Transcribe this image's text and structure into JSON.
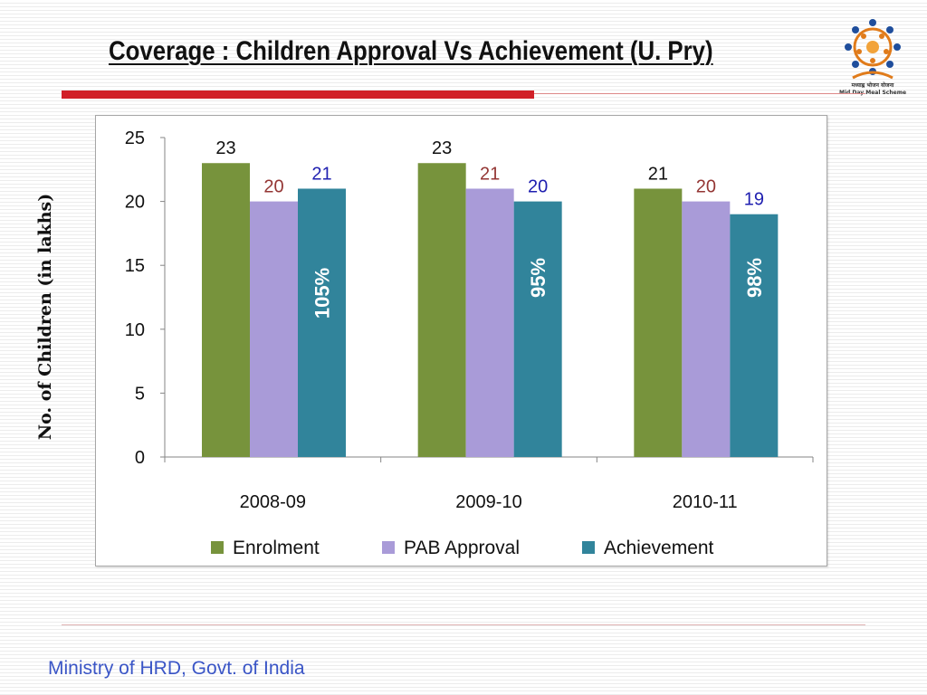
{
  "slide": {
    "title": "Coverage : Children Approval Vs Achievement (U. Pry)",
    "footer": "Ministry of HRD, Govt. of India",
    "logo_text_hindi": "मध्याह्न भोजन योजना",
    "logo_text": "Mid Day Meal Scheme"
  },
  "colors": {
    "enrolment": "#77933c",
    "pab_approval": "#a99bd8",
    "achievement": "#31849b",
    "label_dark": "#111111",
    "label_red": "#943634",
    "label_blue": "#1f1fb0",
    "accent_red": "#d11f27"
  },
  "chart_data": {
    "type": "bar",
    "title": "",
    "xlabel": "",
    "ylabel": "No. of Children (in lakhs)",
    "ylim": [
      0,
      25
    ],
    "yticks": [
      0,
      5,
      10,
      15,
      20,
      25
    ],
    "categories": [
      "2008-09",
      "2009-10",
      "2010-11"
    ],
    "series": [
      {
        "name": "Enrolment",
        "values": [
          23,
          23,
          21
        ]
      },
      {
        "name": "PAB Approval",
        "values": [
          20,
          21,
          20
        ]
      },
      {
        "name": "Achievement",
        "values": [
          21,
          20,
          19
        ]
      }
    ],
    "achievement_percent_labels": [
      "105%",
      "95%",
      "98%"
    ],
    "legend": "bottom",
    "grid": false
  }
}
